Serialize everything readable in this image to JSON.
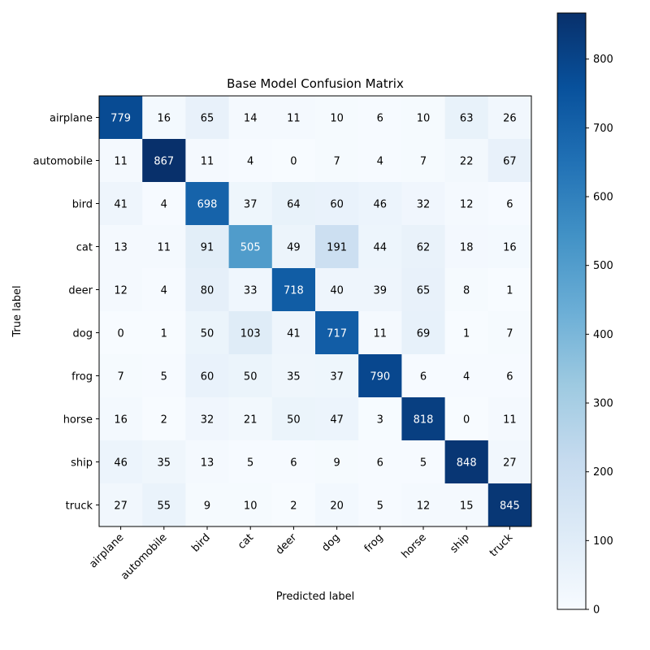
{
  "chart_data": {
    "type": "heatmap",
    "title": "Base Model Confusion Matrix",
    "xlabel": "Predicted label",
    "ylabel": "True label",
    "categories": [
      "airplane",
      "automobile",
      "bird",
      "cat",
      "deer",
      "dog",
      "frog",
      "horse",
      "ship",
      "truck"
    ],
    "matrix": [
      [
        779,
        16,
        65,
        14,
        11,
        10,
        6,
        10,
        63,
        26
      ],
      [
        11,
        867,
        11,
        4,
        0,
        7,
        4,
        7,
        22,
        67
      ],
      [
        41,
        4,
        698,
        37,
        64,
        60,
        46,
        32,
        12,
        6
      ],
      [
        13,
        11,
        91,
        505,
        49,
        191,
        44,
        62,
        18,
        16
      ],
      [
        12,
        4,
        80,
        33,
        718,
        40,
        39,
        65,
        8,
        1
      ],
      [
        0,
        1,
        50,
        103,
        41,
        717,
        11,
        69,
        1,
        7
      ],
      [
        7,
        5,
        60,
        50,
        35,
        37,
        790,
        6,
        4,
        6
      ],
      [
        16,
        2,
        32,
        21,
        50,
        47,
        3,
        818,
        0,
        11
      ],
      [
        46,
        35,
        13,
        5,
        6,
        9,
        6,
        5,
        848,
        27
      ],
      [
        27,
        55,
        9,
        10,
        2,
        20,
        5,
        12,
        15,
        845
      ]
    ],
    "colormap": "Blues",
    "color_range": [
      0,
      867
    ],
    "colorbar_ticks": [
      0,
      100,
      200,
      300,
      400,
      500,
      600,
      700,
      800
    ],
    "grid": false,
    "legend": "colorbar-right"
  }
}
